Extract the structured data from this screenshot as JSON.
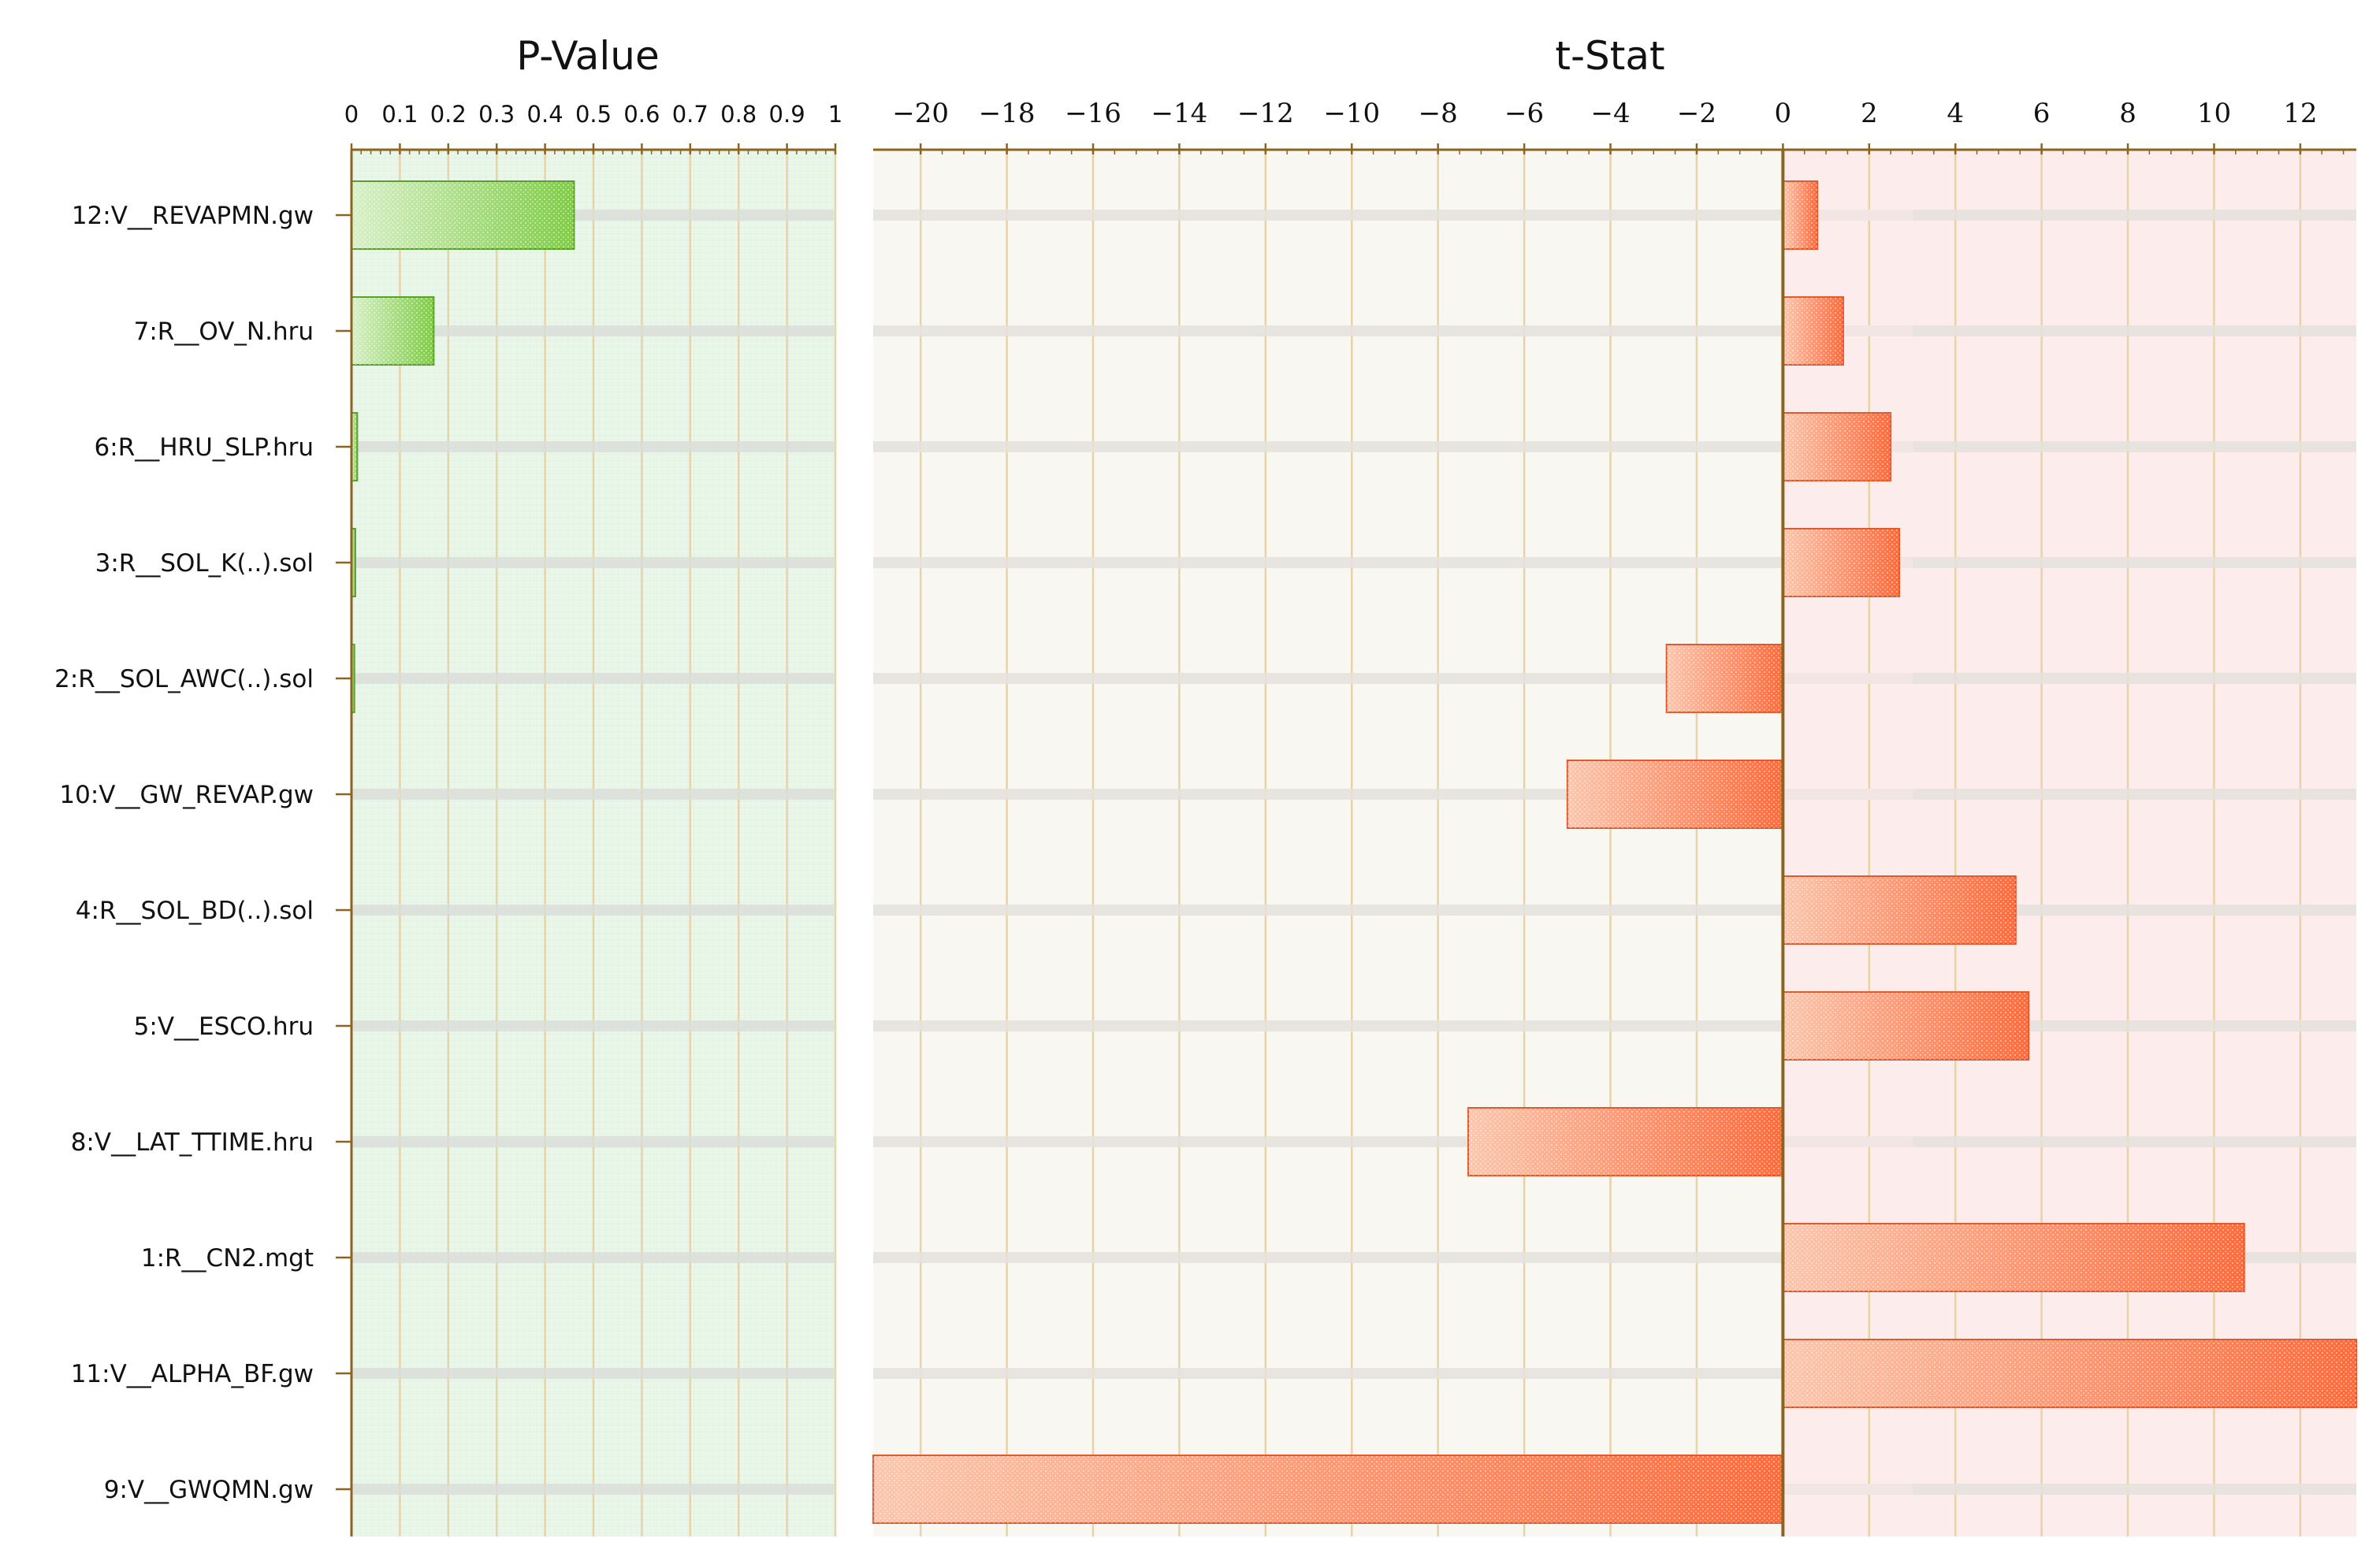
{
  "chart_data": [
    {
      "type": "bar",
      "orientation": "horizontal",
      "title": "P-Value",
      "xlim": [
        0,
        1
      ],
      "ticks": [
        "0",
        "0.1",
        "0.2",
        "0.3",
        "0.4",
        "0.5",
        "0.6",
        "0.7",
        "0.8",
        "0.9",
        "1"
      ],
      "tick_values": [
        0,
        0.1,
        0.2,
        0.3,
        0.4,
        0.5,
        0.6,
        0.7,
        0.8,
        0.9,
        1
      ],
      "categories": [
        "12:V__REVAPMN.gw",
        "7:R__OV_N.hru",
        "6:R__HRU_SLP.hru",
        "3:R__SOL_K(..).sol",
        "2:R__SOL_AWC(..).sol",
        "10:V__GW_REVAP.gw",
        "4:R__SOL_BD(..).sol",
        "5:V__ESCO.hru",
        "8:V__LAT_TTIME.hru",
        "1:R__CN2.mgt",
        "11:V__ALPHA_BF.gw",
        "9:V__GWQMN.gw"
      ],
      "values": [
        0.46,
        0.17,
        0.012,
        0.008,
        0.006,
        0.0,
        0.0,
        0.0,
        0.0,
        0.0,
        0.0,
        0.0
      ],
      "bar_color": "#7fcc45",
      "background": "#eaf6ea"
    },
    {
      "type": "bar",
      "orientation": "horizontal",
      "title": "t-Stat",
      "xlim": [
        -21.1,
        13.3
      ],
      "ticks": [
        "−20",
        "−18",
        "−16",
        "−14",
        "−12",
        "−10",
        "−8",
        "−6",
        "−4",
        "−2",
        "0",
        "2",
        "4",
        "6",
        "8",
        "10",
        "12"
      ],
      "tick_values": [
        -20,
        -18,
        -16,
        -14,
        -12,
        -10,
        -8,
        -6,
        -4,
        -2,
        0,
        2,
        4,
        6,
        8,
        10,
        12
      ],
      "categories": [
        "12:V__REVAPMN.gw",
        "7:R__OV_N.hru",
        "6:R__HRU_SLP.hru",
        "3:R__SOL_K(..).sol",
        "2:R__SOL_AWC(..).sol",
        "10:V__GW_REVAP.gw",
        "4:R__SOL_BD(..).sol",
        "5:V__ESCO.hru",
        "8:V__LAT_TTIME.hru",
        "1:R__CN2.mgt",
        "11:V__ALPHA_BF.gw",
        "9:V__GWQMN.gw"
      ],
      "values": [
        0.8,
        1.4,
        2.5,
        2.7,
        -2.7,
        -5.0,
        5.4,
        5.7,
        -7.3,
        10.7,
        13.3,
        -21.2
      ],
      "bar_color": "#ff6a3a",
      "negative_background": "#f8f7f2",
      "positive_background": "#fdecec"
    }
  ]
}
